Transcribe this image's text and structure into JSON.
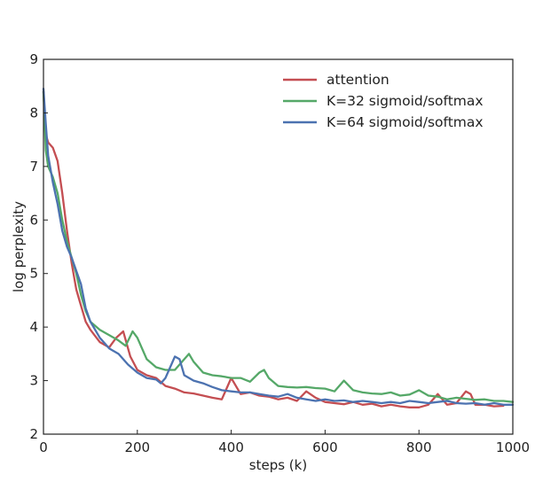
{
  "chart_data": {
    "type": "line",
    "title": "",
    "xlabel": "steps (k)",
    "ylabel": "log perplexity",
    "xlim": [
      0,
      1000
    ],
    "ylim": [
      2,
      9
    ],
    "xticks": [
      0,
      200,
      400,
      600,
      800,
      1000
    ],
    "yticks": [
      2,
      3,
      4,
      5,
      6,
      7,
      8,
      9
    ],
    "grid": false,
    "legend_position": "top-right",
    "series": [
      {
        "name": "attention",
        "color": "#c44e52",
        "x": [
          0,
          5,
          10,
          20,
          30,
          40,
          50,
          60,
          70,
          80,
          90,
          100,
          120,
          140,
          155,
          170,
          185,
          200,
          220,
          240,
          260,
          280,
          300,
          320,
          340,
          360,
          380,
          400,
          420,
          440,
          460,
          480,
          500,
          520,
          540,
          560,
          580,
          600,
          620,
          640,
          660,
          680,
          700,
          720,
          740,
          760,
          780,
          800,
          820,
          840,
          860,
          880,
          900,
          910,
          920,
          940,
          960,
          980
        ],
        "y": [
          8.4,
          7.6,
          7.45,
          7.35,
          7.1,
          6.5,
          5.8,
          5.2,
          4.7,
          4.4,
          4.1,
          3.95,
          3.72,
          3.62,
          3.8,
          3.92,
          3.45,
          3.2,
          3.1,
          3.05,
          2.9,
          2.85,
          2.78,
          2.76,
          2.72,
          2.68,
          2.65,
          3.05,
          2.75,
          2.78,
          2.72,
          2.7,
          2.65,
          2.68,
          2.62,
          2.8,
          2.68,
          2.6,
          2.58,
          2.56,
          2.6,
          2.55,
          2.57,
          2.52,
          2.55,
          2.52,
          2.5,
          2.5,
          2.55,
          2.75,
          2.55,
          2.58,
          2.8,
          2.75,
          2.55,
          2.55,
          2.52,
          2.53
        ]
      },
      {
        "name": "K=32 sigmoid/softmax",
        "color": "#55a868",
        "x": [
          0,
          5,
          10,
          20,
          30,
          40,
          50,
          60,
          70,
          80,
          90,
          100,
          120,
          140,
          160,
          175,
          190,
          200,
          210,
          220,
          240,
          260,
          280,
          300,
          310,
          320,
          340,
          360,
          380,
          400,
          420,
          440,
          460,
          470,
          480,
          500,
          520,
          540,
          560,
          580,
          600,
          620,
          640,
          660,
          680,
          700,
          720,
          740,
          760,
          780,
          800,
          820,
          840,
          860,
          880,
          900,
          920,
          940,
          960,
          980,
          1000
        ],
        "y": [
          8.4,
          7.3,
          7.0,
          6.8,
          6.5,
          6.0,
          5.6,
          5.3,
          5.0,
          4.6,
          4.3,
          4.1,
          3.95,
          3.85,
          3.75,
          3.65,
          3.92,
          3.8,
          3.6,
          3.4,
          3.25,
          3.2,
          3.2,
          3.4,
          3.5,
          3.35,
          3.15,
          3.1,
          3.08,
          3.05,
          3.05,
          2.98,
          3.15,
          3.2,
          3.05,
          2.9,
          2.88,
          2.87,
          2.88,
          2.86,
          2.85,
          2.8,
          3.0,
          2.82,
          2.78,
          2.76,
          2.75,
          2.78,
          2.72,
          2.74,
          2.82,
          2.72,
          2.7,
          2.65,
          2.68,
          2.66,
          2.64,
          2.65,
          2.62,
          2.62,
          2.6
        ]
      },
      {
        "name": "K=64 sigmoid/softmax",
        "color": "#4c72b0",
        "x": [
          0,
          5,
          10,
          20,
          30,
          40,
          50,
          60,
          70,
          80,
          90,
          100,
          120,
          140,
          160,
          180,
          200,
          220,
          240,
          250,
          260,
          270,
          280,
          290,
          300,
          320,
          340,
          360,
          380,
          400,
          420,
          440,
          460,
          480,
          500,
          520,
          540,
          560,
          580,
          600,
          620,
          640,
          660,
          680,
          700,
          720,
          740,
          760,
          780,
          800,
          820,
          840,
          860,
          880,
          900,
          920,
          940,
          960,
          980,
          1000
        ],
        "y": [
          8.45,
          7.8,
          7.2,
          6.7,
          6.3,
          5.8,
          5.5,
          5.3,
          5.05,
          4.8,
          4.35,
          4.1,
          3.8,
          3.6,
          3.5,
          3.3,
          3.15,
          3.05,
          3.02,
          2.95,
          3.05,
          3.25,
          3.45,
          3.4,
          3.1,
          3.0,
          2.95,
          2.88,
          2.82,
          2.8,
          2.78,
          2.78,
          2.75,
          2.72,
          2.7,
          2.75,
          2.68,
          2.65,
          2.62,
          2.65,
          2.62,
          2.63,
          2.6,
          2.62,
          2.6,
          2.58,
          2.6,
          2.58,
          2.62,
          2.6,
          2.58,
          2.6,
          2.62,
          2.58,
          2.57,
          2.58,
          2.55,
          2.58,
          2.55,
          2.55
        ]
      }
    ]
  }
}
